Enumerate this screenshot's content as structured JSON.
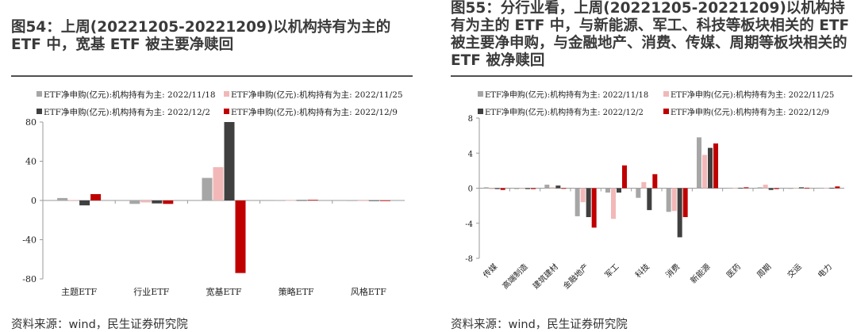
{
  "figures": [
    {
      "title": "图54：上周(20221205-20221209)以机构持有为主的 ETF 中，宽基 ETF 被主要净赎回",
      "source": "资料来源：wind，民生证券研究院"
    },
    {
      "title": "图55：分行业看，上周(20221205-20221209)以机构持有为主的 ETF 中，与新能源、军工、科技等板块相关的 ETF 被主要净申购，与金融地产、消费、传媒、周期等板块相关的 ETF 被净赎回",
      "source": "资料来源：wind，民生证券研究院"
    }
  ],
  "chart_data": [
    {
      "type": "bar",
      "legend_position": "top",
      "categories": [
        "主题ETF",
        "行业ETF",
        "宽基ETF",
        "策略ETF",
        "风格ETF"
      ],
      "series": [
        {
          "name": "ETF净申购(亿元):机构持有为主: 2022/11/18",
          "color": "#a6a6a6",
          "values": [
            2.5,
            -3.5,
            23,
            0.2,
            0.1
          ]
        },
        {
          "name": "ETF净申购(亿元):机构持有为主: 2022/11/25",
          "color": "#f2b8b8",
          "values": [
            0.5,
            -2,
            34,
            0.2,
            0.1
          ]
        },
        {
          "name": "ETF净申购(亿元):机构持有为主: 2022/12/2",
          "color": "#404040",
          "values": [
            -5,
            -3,
            80,
            0.4,
            0.1
          ]
        },
        {
          "name": "ETF净申购(亿元):机构持有为主: 2022/12/9",
          "color": "#c00000",
          "values": [
            6.5,
            -3.5,
            -74,
            0.6,
            0.1
          ]
        }
      ],
      "ylim": [
        -80,
        80
      ],
      "yticks": [
        -80,
        -40,
        0,
        40,
        80
      ],
      "grid": false
    },
    {
      "type": "bar",
      "legend_position": "top",
      "categories": [
        "传媒",
        "高端制造",
        "建筑建材",
        "金融地产",
        "军工",
        "科技",
        "消费",
        "新能源",
        "医药",
        "周期",
        "交运",
        "电力"
      ],
      "series": [
        {
          "name": "ETF净申购(亿元):机构持有为主: 2022/11/18",
          "color": "#a6a6a6",
          "values": [
            0.1,
            -0.1,
            0.4,
            -3.2,
            -0.5,
            -1.1,
            -2.7,
            5.8,
            0.05,
            0.1,
            -0.05,
            0.05
          ]
        },
        {
          "name": "ETF净申购(亿元):机构持有为主: 2022/11/25",
          "color": "#f2b8b8",
          "values": [
            -0.1,
            -0.05,
            0.1,
            -1.6,
            -3.5,
            0.7,
            -2.6,
            3.8,
            0.05,
            0.4,
            0.05,
            0.05
          ]
        },
        {
          "name": "ETF净申购(亿元):机构持有为主: 2022/12/2",
          "color": "#404040",
          "values": [
            -0.1,
            -0.1,
            0.3,
            -3.3,
            -0.5,
            -2.5,
            -5.6,
            4.6,
            0.05,
            -0.2,
            0.1,
            0.05
          ]
        },
        {
          "name": "ETF净申购(亿元):机构持有为主: 2022/12/9",
          "color": "#c00000",
          "values": [
            -0.2,
            -0.1,
            -0.05,
            -4.5,
            2.6,
            1.6,
            -3.3,
            5.1,
            0.1,
            -0.1,
            0.05,
            0.2
          ]
        }
      ],
      "ylim": [
        -8,
        8
      ],
      "yticks": [
        -8,
        -4,
        0,
        4,
        8
      ],
      "grid": false
    }
  ]
}
